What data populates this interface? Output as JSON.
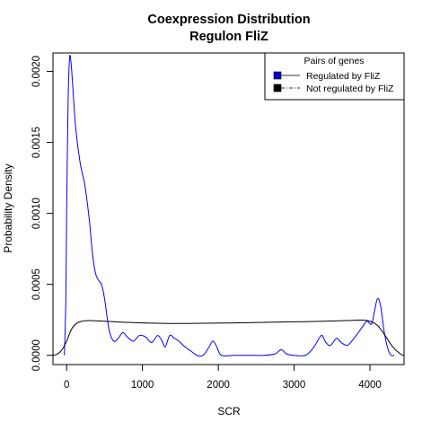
{
  "chart_data": {
    "type": "line",
    "title": "Coexpression Distribution",
    "subtitle": "Regulon FliZ",
    "xlabel": "SCR",
    "ylabel": "Probability Density",
    "xlim": [
      -180,
      4450
    ],
    "ylim": [
      -6.5e-05,
      0.00213
    ],
    "x_ticks": [
      0,
      1000,
      2000,
      3000,
      4000
    ],
    "x_tick_labels": [
      "0",
      "1000",
      "2000",
      "3000",
      "4000"
    ],
    "y_ticks": [
      0.0,
      0.0005,
      0.001,
      0.0015,
      0.002
    ],
    "y_tick_labels": [
      "0.0000",
      "0.0005",
      "0.0010",
      "0.0015",
      "0.0020"
    ],
    "grid": false,
    "legend": {
      "title": "Pairs of genes",
      "placement": "top-right",
      "entries": [
        {
          "label": "Regulated by  FliZ",
          "line_style": "solid",
          "box_color": "#0000cc"
        },
        {
          "label": "Not regulated by  FliZ",
          "line_style": "dashdot",
          "box_color": "#000000"
        }
      ]
    },
    "series": [
      {
        "name": "Regulated by  FliZ",
        "color": "#0000ff",
        "points": [
          [
            -30,
            0.0
          ],
          [
            -10,
            0.0004
          ],
          [
            0,
            0.001
          ],
          [
            20,
            0.0018
          ],
          [
            40,
            0.0021
          ],
          [
            60,
            0.00205
          ],
          [
            80,
            0.0019
          ],
          [
            120,
            0.0016
          ],
          [
            180,
            0.00135
          ],
          [
            240,
            0.0012
          ],
          [
            300,
            0.00095
          ],
          [
            340,
            0.00072
          ],
          [
            380,
            0.00058
          ],
          [
            420,
            0.00053
          ],
          [
            460,
            0.0005
          ],
          [
            500,
            0.0004
          ],
          [
            560,
            0.00018
          ],
          [
            620,
            0.0001
          ],
          [
            680,
            0.00012
          ],
          [
            740,
            0.00016
          ],
          [
            800,
            0.00013
          ],
          [
            880,
            0.0001
          ],
          [
            960,
            0.00014
          ],
          [
            1040,
            0.00013
          ],
          [
            1120,
            9e-05
          ],
          [
            1200,
            0.00014
          ],
          [
            1260,
            0.0001
          ],
          [
            1300,
            6e-05
          ],
          [
            1360,
            0.00014
          ],
          [
            1420,
            0.00012
          ],
          [
            1480,
            0.0001
          ],
          [
            1560,
            6e-05
          ],
          [
            1640,
            3e-05
          ],
          [
            1720,
            0.0
          ],
          [
            1800,
            0.0
          ],
          [
            1880,
            6e-05
          ],
          [
            1930,
            0.0001
          ],
          [
            1980,
            6e-05
          ],
          [
            2040,
            0.0
          ],
          [
            2200,
            0.0
          ],
          [
            2400,
            0.0
          ],
          [
            2600,
            0.0
          ],
          [
            2750,
            1e-05
          ],
          [
            2830,
            4e-05
          ],
          [
            2900,
            1e-05
          ],
          [
            3000,
            0.0
          ],
          [
            3150,
            0.0
          ],
          [
            3250,
            5e-05
          ],
          [
            3330,
            0.00012
          ],
          [
            3370,
            0.00014
          ],
          [
            3420,
            9e-05
          ],
          [
            3480,
            7e-05
          ],
          [
            3560,
            0.00012
          ],
          [
            3620,
            9e-05
          ],
          [
            3700,
            7e-05
          ],
          [
            3760,
            0.0001
          ],
          [
            3820,
            0.00014
          ],
          [
            3900,
            0.0002
          ],
          [
            3960,
            0.00024
          ],
          [
            4020,
            0.00022
          ],
          [
            4060,
            0.00031
          ],
          [
            4100,
            0.0004
          ],
          [
            4140,
            0.00035
          ],
          [
            4190,
            0.00016
          ],
          [
            4240,
            4e-05
          ],
          [
            4280,
            0.0
          ],
          [
            4320,
            0.0
          ]
        ]
      },
      {
        "name": "Not regulated by  FliZ",
        "color": "#000000",
        "points": [
          [
            -180,
            0.0
          ],
          [
            -120,
            1e-05
          ],
          [
            -60,
            4e-05
          ],
          [
            0,
            0.0001
          ],
          [
            60,
            0.00018
          ],
          [
            120,
            0.00022
          ],
          [
            200,
            0.00024
          ],
          [
            300,
            0.000245
          ],
          [
            500,
            0.00024
          ],
          [
            800,
            0.000232
          ],
          [
            1200,
            0.000226
          ],
          [
            1500,
            0.000224
          ],
          [
            1800,
            0.000226
          ],
          [
            2200,
            0.000228
          ],
          [
            2600,
            0.000232
          ],
          [
            3000,
            0.000236
          ],
          [
            3400,
            0.00024
          ],
          [
            3700,
            0.000245
          ],
          [
            3900,
            0.000248
          ],
          [
            4000,
            0.00024
          ],
          [
            4100,
            0.00021
          ],
          [
            4200,
            0.00014
          ],
          [
            4300,
            6e-05
          ],
          [
            4400,
            1e-05
          ],
          [
            4450,
            0.0
          ]
        ]
      }
    ]
  }
}
